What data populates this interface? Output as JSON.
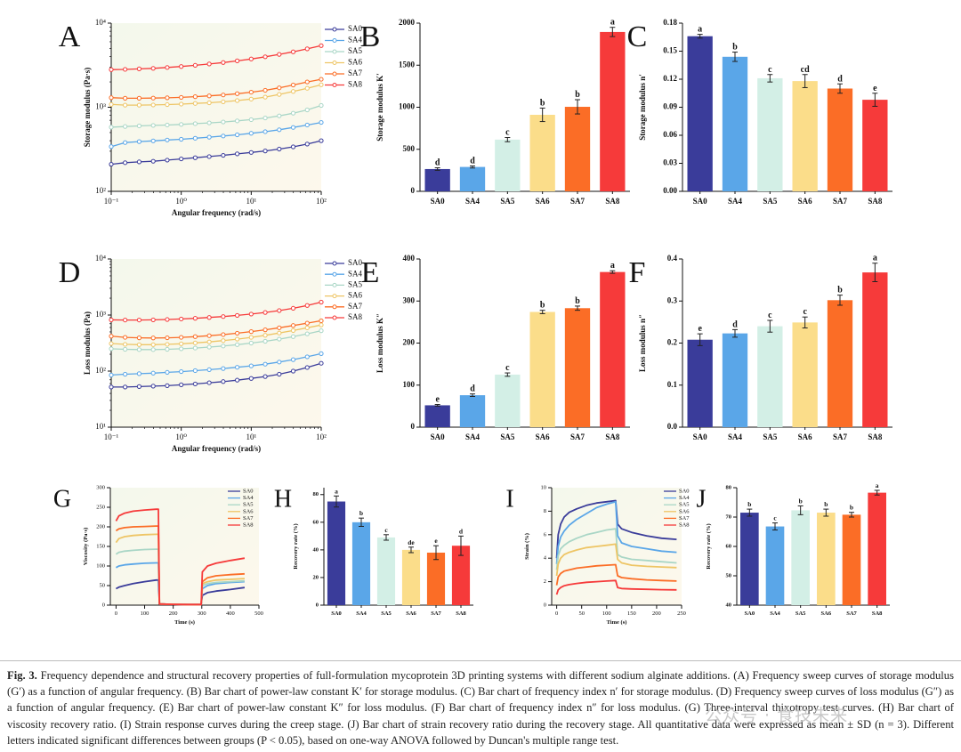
{
  "figure": {
    "caption_label": "Fig. 3.",
    "caption_text": "Frequency dependence and structural recovery properties of full-formulation mycoprotein 3D printing systems with different sodium alginate additions. (A) Frequency sweep curves of storage modulus (G′) as a function of angular frequency. (B) Bar chart of power-law constant K′ for storage modulus. (C) Bar chart of frequency index n′ for storage modulus. (D) Frequency sweep curves of loss modulus (G″) as a function of angular frequency. (E) Bar chart of power-law constant K″ for loss modulus. (F) Bar chart of frequency index n″ for loss modulus. (G) Three-interval thixotropy test curves. (H) Bar chart of viscosity recovery ratio. (I) Strain response curves during the creep stage. (J) Bar chart of strain recovery ratio during the recovery stage. All quantitative data were expressed as mean ± SD (n = 3). Different letters indicated significant differences between groups (P < 0.05), based on one-way ANOVA followed by Duncan's multiple range test.",
    "watermark": "公众号 · 食技未来"
  },
  "colors": {
    "SA0": "#3a3c9a",
    "SA4": "#5aa6e8",
    "SA5": "#d3efe6",
    "SA6": "#fbdd8a",
    "SA7": "#fb6d26",
    "SA8": "#f63a3a"
  },
  "chart_data": [
    {
      "panel": "A",
      "type": "line",
      "xscale": "log",
      "yscale": "log",
      "xlabel": "Angular frequency (rad/s)",
      "ylabel": "Storage modulus (Pa·s)",
      "xlim": [
        0.1,
        100
      ],
      "ylim": [
        100,
        10000
      ],
      "xticks": [
        0.1,
        1,
        10,
        100
      ],
      "xticklabels": [
        "10⁻¹",
        "10⁰",
        "10¹",
        "10²"
      ],
      "yticks": [
        100,
        1000,
        10000
      ],
      "yticklabels": [
        "10²",
        "10³",
        "10⁴"
      ],
      "legend": "top-right",
      "x": [
        0.1,
        0.158,
        0.251,
        0.398,
        0.631,
        1,
        1.585,
        2.512,
        3.981,
        6.31,
        10,
        15.85,
        25.12,
        39.81,
        63.1,
        100
      ],
      "series": [
        {
          "name": "SA0",
          "values": [
            210,
            219,
            224,
            228,
            235,
            243,
            251,
            259,
            268,
            279,
            290,
            302,
            318,
            338,
            365,
            400
          ]
        },
        {
          "name": "SA4",
          "values": [
            340,
            380,
            390,
            398,
            408,
            416,
            428,
            441,
            455,
            470,
            490,
            512,
            540,
            575,
            615,
            660
          ]
        },
        {
          "name": "SA5",
          "values": [
            580,
            590,
            600,
            608,
            615,
            625,
            638,
            652,
            668,
            688,
            712,
            745,
            790,
            850,
            930,
            1050
          ]
        },
        {
          "name": "SA6",
          "values": [
            1080,
            1060,
            1060,
            1065,
            1075,
            1090,
            1110,
            1130,
            1160,
            1200,
            1250,
            1320,
            1420,
            1540,
            1680,
            1850
          ]
        },
        {
          "name": "SA7",
          "values": [
            1300,
            1280,
            1280,
            1285,
            1295,
            1310,
            1335,
            1365,
            1400,
            1450,
            1510,
            1590,
            1700,
            1840,
            2000,
            2150
          ]
        },
        {
          "name": "SA8",
          "values": [
            2800,
            2820,
            2860,
            2900,
            2970,
            3050,
            3150,
            3270,
            3400,
            3560,
            3750,
            3980,
            4250,
            4560,
            4950,
            5400
          ]
        }
      ]
    },
    {
      "panel": "B",
      "type": "bar",
      "ylabel": "Storage modulus K′",
      "categories": [
        "SA0",
        "SA4",
        "SA5",
        "SA6",
        "SA7",
        "SA8"
      ],
      "values": [
        265,
        290,
        615,
        910,
        1005,
        1895
      ],
      "errors": [
        15,
        12,
        25,
        80,
        85,
        55
      ],
      "letters": [
        "d",
        "d",
        "c",
        "b",
        "b",
        "a"
      ],
      "ylim": [
        0,
        2000
      ],
      "yticks": [
        0,
        500,
        1000,
        1500,
        2000
      ]
    },
    {
      "panel": "C",
      "type": "bar",
      "ylabel": "Storage modulus n′",
      "categories": [
        "SA0",
        "SA4",
        "SA5",
        "SA6",
        "SA7",
        "SA8"
      ],
      "values": [
        0.166,
        0.144,
        0.121,
        0.118,
        0.11,
        0.098
      ],
      "errors": [
        0.002,
        0.005,
        0.004,
        0.007,
        0.005,
        0.007
      ],
      "letters": [
        "a",
        "b",
        "c",
        "cd",
        "d",
        "e"
      ],
      "ylim": [
        0,
        0.18
      ],
      "yticks": [
        0,
        0.03,
        0.06,
        0.09,
        0.12,
        0.15,
        0.18
      ],
      "yticklabels": [
        "0.00",
        "0.03",
        "0.06",
        "0.09",
        "0.12",
        "0.15",
        "0.18"
      ]
    },
    {
      "panel": "D",
      "type": "line",
      "xscale": "log",
      "yscale": "log",
      "xlabel": "Angular frequency (rad/s)",
      "ylabel": "Loss modulus (Pa)",
      "xlim": [
        0.1,
        100
      ],
      "ylim": [
        10,
        10000
      ],
      "xticks": [
        0.1,
        1,
        10,
        100
      ],
      "xticklabels": [
        "10⁻¹",
        "10⁰",
        "10¹",
        "10²"
      ],
      "yticks": [
        10,
        100,
        1000,
        10000
      ],
      "yticklabels": [
        "10¹",
        "10²",
        "10³",
        "10⁴"
      ],
      "legend": "top-right",
      "x": [
        0.1,
        0.158,
        0.251,
        0.398,
        0.631,
        1,
        1.585,
        2.512,
        3.981,
        6.31,
        10,
        15.85,
        25.12,
        39.81,
        63.1,
        100
      ],
      "series": [
        {
          "name": "SA0",
          "values": [
            52,
            52,
            53,
            54,
            55,
            57,
            59,
            62,
            65,
            69,
            74,
            80,
            88,
            100,
            116,
            138
          ]
        },
        {
          "name": "SA4",
          "values": [
            85,
            88,
            90,
            92,
            95,
            98,
            102,
            106,
            111,
            117,
            124,
            133,
            145,
            160,
            180,
            205
          ]
        },
        {
          "name": "SA5",
          "values": [
            250,
            245,
            242,
            242,
            245,
            250,
            258,
            268,
            280,
            296,
            316,
            340,
            372,
            412,
            462,
            525
          ]
        },
        {
          "name": "SA6",
          "values": [
            310,
            300,
            296,
            296,
            300,
            307,
            318,
            332,
            350,
            372,
            400,
            435,
            478,
            530,
            592,
            665
          ]
        },
        {
          "name": "SA7",
          "values": [
            420,
            400,
            392,
            390,
            393,
            400,
            412,
            428,
            448,
            474,
            506,
            545,
            592,
            650,
            716,
            790
          ]
        },
        {
          "name": "SA8",
          "values": [
            820,
            815,
            815,
            820,
            832,
            850,
            875,
            905,
            940,
            985,
            1040,
            1110,
            1200,
            1320,
            1480,
            1700
          ]
        }
      ]
    },
    {
      "panel": "E",
      "type": "bar",
      "ylabel": "Loss modulus K″",
      "categories": [
        "SA0",
        "SA4",
        "SA5",
        "SA6",
        "SA7",
        "SA8"
      ],
      "values": [
        52,
        76,
        125,
        274,
        283,
        369
      ],
      "errors": [
        2,
        3,
        4,
        4,
        5,
        3
      ],
      "letters": [
        "e",
        "d",
        "c",
        "b",
        "b",
        "a"
      ],
      "ylim": [
        0,
        400
      ],
      "yticks": [
        0,
        100,
        200,
        300,
        400
      ]
    },
    {
      "panel": "F",
      "type": "bar",
      "ylabel": "Loss modulus n″",
      "categories": [
        "SA0",
        "SA4",
        "SA5",
        "SA6",
        "SA7",
        "SA8"
      ],
      "values": [
        0.208,
        0.223,
        0.24,
        0.249,
        0.302,
        0.368
      ],
      "errors": [
        0.014,
        0.009,
        0.014,
        0.013,
        0.012,
        0.022
      ],
      "letters": [
        "e",
        "d",
        "c",
        "c",
        "b",
        "a"
      ],
      "ylim": [
        0,
        0.4
      ],
      "yticks": [
        0,
        0.1,
        0.2,
        0.3,
        0.4
      ],
      "yticklabels": [
        "0.0",
        "0.1",
        "0.2",
        "0.3",
        "0.4"
      ]
    },
    {
      "panel": "G",
      "type": "line",
      "xlabel": "Time (s)",
      "ylabel": "Viscosity (Pa·s)",
      "xlim": [
        -20,
        500
      ],
      "ylim": [
        0,
        300
      ],
      "xticks": [
        0,
        100,
        200,
        300,
        400,
        500
      ],
      "yticks": [
        0,
        50,
        100,
        150,
        200,
        250,
        300
      ],
      "legend": "top-right",
      "x": [
        0,
        10,
        30,
        60,
        100,
        140,
        148,
        152,
        200,
        250,
        298,
        302,
        320,
        350,
        400,
        450
      ],
      "series": [
        {
          "name": "SA0",
          "values": [
            42,
            46,
            50,
            55,
            60,
            64,
            64,
            3,
            2,
            1.5,
            1.5,
            25,
            32,
            36,
            40,
            45
          ]
        },
        {
          "name": "SA4",
          "values": [
            96,
            100,
            103,
            105,
            107,
            108,
            108,
            3,
            2,
            1.5,
            1.5,
            42,
            50,
            55,
            58,
            60
          ]
        },
        {
          "name": "SA5",
          "values": [
            130,
            135,
            138,
            140,
            142,
            143,
            143,
            3,
            2,
            1.5,
            1.5,
            50,
            55,
            58,
            60,
            62
          ]
        },
        {
          "name": "SA6",
          "values": [
            160,
            170,
            175,
            178,
            180,
            181,
            181,
            3,
            2,
            1.5,
            1.5,
            55,
            60,
            64,
            66,
            68
          ]
        },
        {
          "name": "SA7",
          "values": [
            190,
            195,
            198,
            200,
            201,
            202,
            202,
            3,
            2,
            1.5,
            1.5,
            60,
            70,
            75,
            78,
            80
          ]
        },
        {
          "name": "SA8",
          "values": [
            215,
            228,
            235,
            240,
            243,
            245,
            245,
            3,
            2,
            1.5,
            1.5,
            85,
            100,
            107,
            114,
            120
          ]
        }
      ]
    },
    {
      "panel": "H",
      "type": "bar",
      "ylabel": "Recovery rate (%)",
      "categories": [
        "SA0",
        "SA4",
        "SA5",
        "SA6",
        "SA7",
        "SA8"
      ],
      "values": [
        75,
        60,
        49,
        40,
        38,
        43
      ],
      "errors": [
        4,
        3,
        2,
        2,
        5,
        7
      ],
      "letters": [
        "a",
        "b",
        "c",
        "de",
        "e",
        "d"
      ],
      "ylim": [
        0,
        85
      ],
      "yticks": [
        0,
        20,
        40,
        60,
        80
      ]
    },
    {
      "panel": "I",
      "type": "line",
      "xlabel": "Time (s)",
      "ylabel": "Strain (%)",
      "xlim": [
        -10,
        250
      ],
      "ylim": [
        0,
        10
      ],
      "xticks": [
        0,
        50,
        100,
        150,
        200,
        250
      ],
      "yticks": [
        0,
        2,
        4,
        6,
        8,
        10
      ],
      "legend": "top-right",
      "x": [
        0,
        3,
        8,
        15,
        25,
        40,
        60,
        80,
        100,
        118,
        122,
        130,
        150,
        180,
        210,
        240
      ],
      "series": [
        {
          "name": "SA0",
          "values": [
            4.0,
            6.0,
            6.9,
            7.5,
            7.9,
            8.2,
            8.5,
            8.7,
            8.8,
            8.9,
            6.9,
            6.5,
            6.2,
            5.9,
            5.7,
            5.6
          ]
        },
        {
          "name": "SA4",
          "values": [
            3.5,
            5.0,
            5.8,
            6.3,
            6.8,
            7.3,
            7.8,
            8.3,
            8.6,
            8.8,
            5.9,
            5.3,
            5.0,
            4.8,
            4.6,
            4.5
          ]
        },
        {
          "name": "SA5",
          "values": [
            3.0,
            4.2,
            4.8,
            5.1,
            5.4,
            5.7,
            6.0,
            6.2,
            6.4,
            6.5,
            4.3,
            4.1,
            3.9,
            3.8,
            3.7,
            3.6
          ]
        },
        {
          "name": "SA6",
          "values": [
            2.5,
            3.5,
            4.0,
            4.3,
            4.5,
            4.7,
            4.9,
            5.0,
            5.1,
            5.2,
            3.9,
            3.6,
            3.4,
            3.3,
            3.25,
            3.2
          ]
        },
        {
          "name": "SA7",
          "values": [
            1.7,
            2.4,
            2.7,
            2.9,
            3.0,
            3.15,
            3.25,
            3.35,
            3.4,
            3.45,
            2.5,
            2.35,
            2.25,
            2.15,
            2.1,
            2.05
          ]
        },
        {
          "name": "SA8",
          "values": [
            0.9,
            1.3,
            1.5,
            1.65,
            1.75,
            1.85,
            1.95,
            2.0,
            2.05,
            2.1,
            1.5,
            1.42,
            1.38,
            1.35,
            1.32,
            1.3
          ]
        }
      ]
    },
    {
      "panel": "J",
      "type": "bar",
      "ylabel": "Recovery rate (%)",
      "categories": [
        "SA0",
        "SA4",
        "SA5",
        "SA6",
        "SA7",
        "SA8"
      ],
      "values": [
        71.5,
        66.8,
        72.3,
        71.5,
        70.8,
        78.3
      ],
      "errors": [
        1.2,
        1.2,
        1.5,
        1.2,
        0.8,
        0.8
      ],
      "letters": [
        "b",
        "c",
        "b",
        "b",
        "b",
        "a"
      ],
      "ylim": [
        40,
        80
      ],
      "yticks": [
        40,
        50,
        60,
        70,
        80
      ]
    }
  ]
}
